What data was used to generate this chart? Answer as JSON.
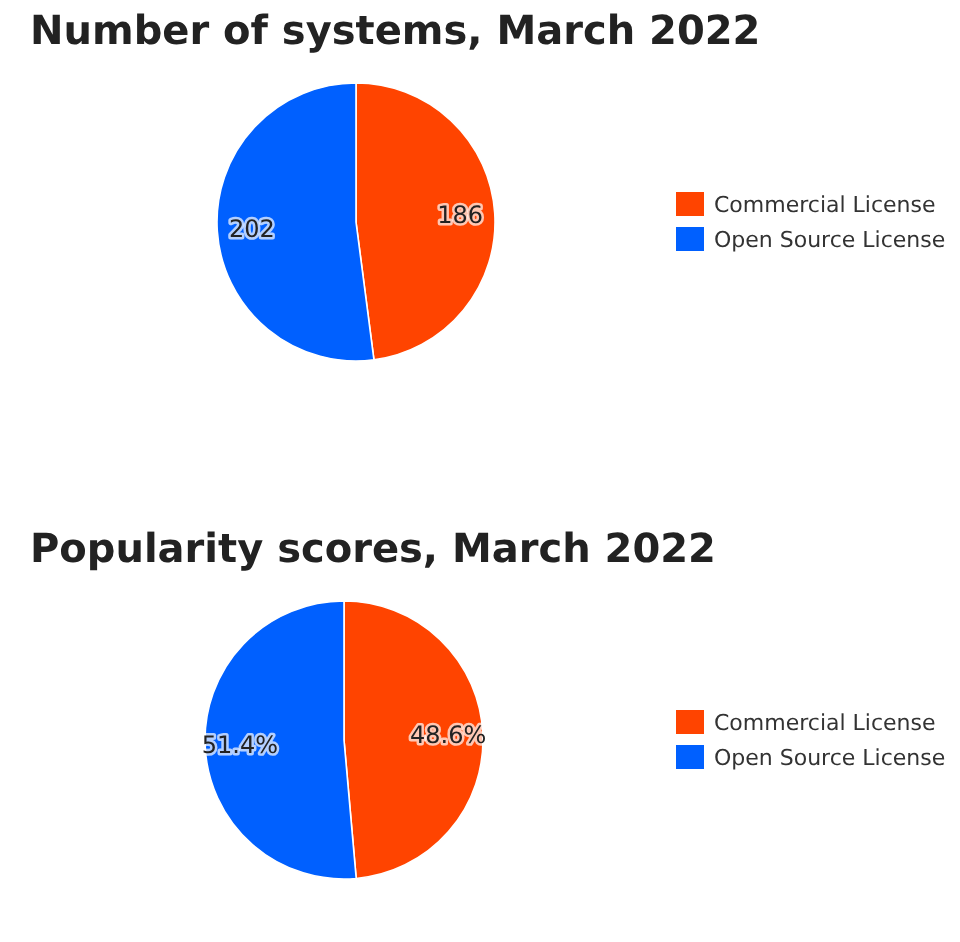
{
  "chart_data": [
    {
      "type": "pie",
      "title": "Number of systems, March 2022",
      "categories": [
        "Commercial License",
        "Open Source License"
      ],
      "values": [
        186,
        202
      ],
      "colors": [
        "#ff4400",
        "#0060ff"
      ],
      "data_labels": true,
      "legend": "right"
    },
    {
      "type": "pie",
      "title": "Popularity scores, March 2022",
      "categories": [
        "Commercial License",
        "Open Source License"
      ],
      "values": [
        48.6,
        51.4
      ],
      "colors": [
        "#ff4400",
        "#0060ff"
      ],
      "value_labels": [
        "48.6%",
        "51.4%"
      ],
      "legend": "right"
    }
  ]
}
